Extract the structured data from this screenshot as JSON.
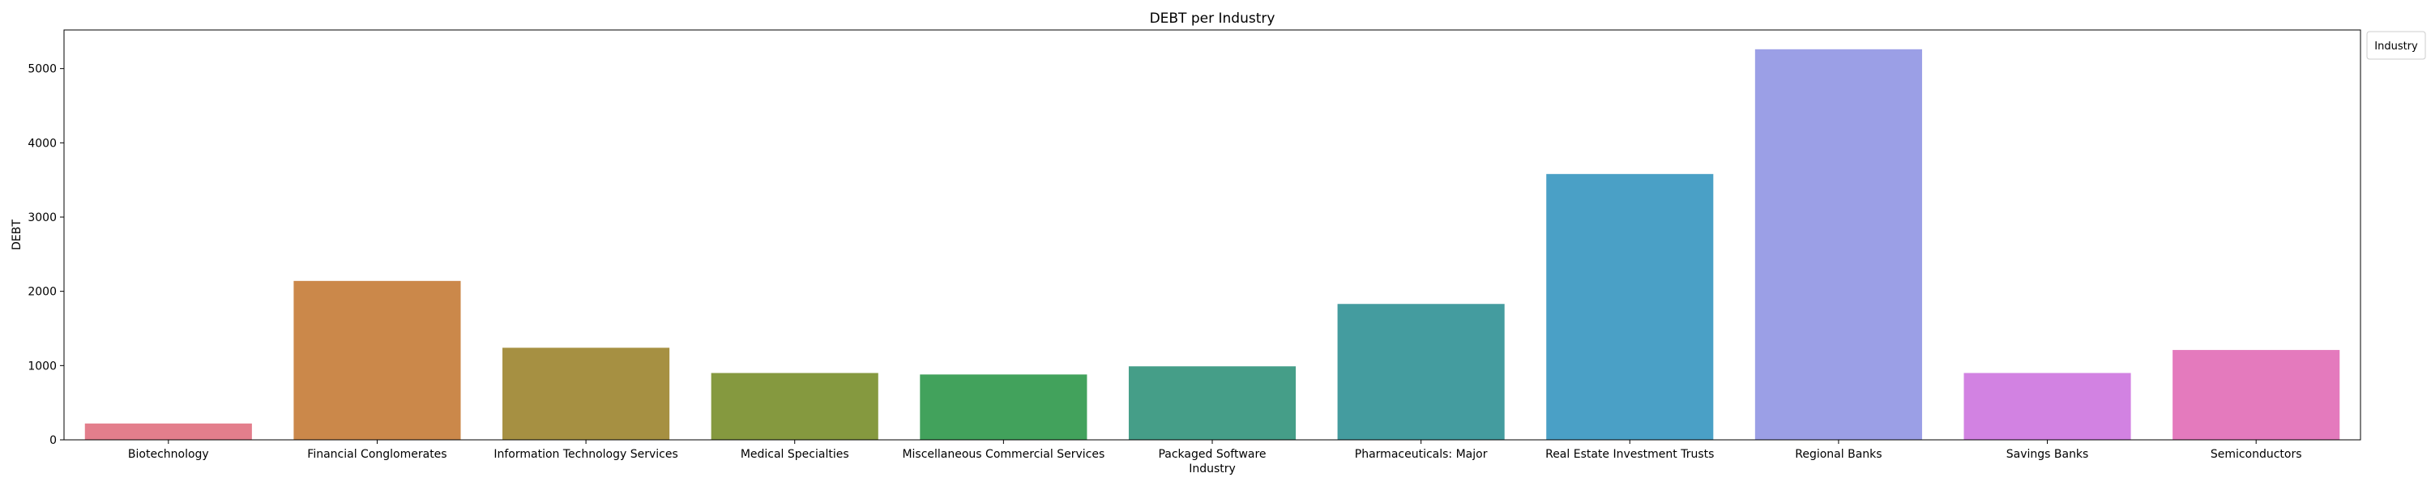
{
  "chart_data": {
    "type": "bar",
    "title": "DEBT per Industry",
    "xlabel": "Industry",
    "ylabel": "DEBT",
    "ylim": [
      0,
      5520
    ],
    "yticks": [
      0,
      1000,
      2000,
      3000,
      4000,
      5000
    ],
    "grid": false,
    "legend": {
      "title": "Industry",
      "placement": "upper-right-outside"
    },
    "categories": [
      "Biotechnology",
      "Financial Conglomerates",
      "Information Technology Services",
      "Medical Specialties",
      "Miscellaneous Commercial Services",
      "Packaged Software",
      "Pharmaceuticals: Major",
      "Real Estate Investment Trusts",
      "Regional Banks",
      "Savings Banks",
      "Semiconductors"
    ],
    "values": [
      220,
      2140,
      1240,
      900,
      880,
      990,
      1830,
      3580,
      5260,
      900,
      1210
    ],
    "colors": [
      "#e37e8c",
      "#cb884a",
      "#a69042",
      "#85993f",
      "#42a25c",
      "#459e88",
      "#449c9f",
      "#4aa0c6",
      "#9b9fe6",
      "#d282e2",
      "#e47abd"
    ]
  }
}
